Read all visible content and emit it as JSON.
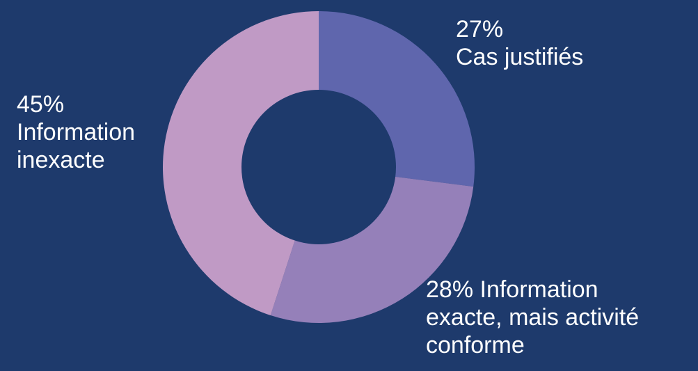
{
  "chart_data": {
    "type": "pie",
    "donut": true,
    "categories": [
      "Cas justifiés",
      "Information exacte, mais activité conforme",
      "Information inexacte"
    ],
    "values": [
      27,
      28,
      45
    ],
    "colors": [
      "#5f66ad",
      "#9580b9",
      "#c09ac5"
    ],
    "background": "#1e3a6c",
    "labels": [
      {
        "lines": [
          "27%",
          "Cas justifiés"
        ]
      },
      {
        "lines": [
          "28% Information",
          "exacte, mais activité",
          "conforme"
        ]
      },
      {
        "lines": [
          "45%",
          "Information",
          "inexacte"
        ]
      }
    ],
    "start_angle": "12 o'clock",
    "direction": "clockwise",
    "legend": "none"
  }
}
